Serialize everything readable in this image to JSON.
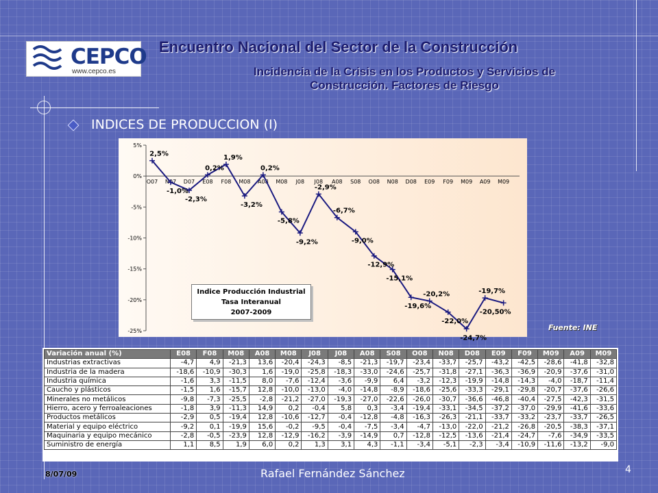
{
  "logo": {
    "name": "CEPCO",
    "url": "www.cepco.es",
    "icon": "cepco-logo-icon",
    "brand_color": "#1e3a8a"
  },
  "header": {
    "title": "Encuentro Nacional del Sector de la Construcción",
    "subtitle_line1": "Incidencia de la Crisis en los Productos y Servicios de",
    "subtitle_line2": "Construcción. Factores de Riesgo"
  },
  "section": {
    "heading": "INDICES DE PRODUCCION (I)",
    "bullet_icon": "diamond-bullet-icon"
  },
  "chart_data": {
    "type": "line",
    "title_lines": [
      "Indice Producción Industrial",
      "Tasa Interanual",
      "2007-2009"
    ],
    "categories": [
      "O07",
      "N07",
      "D07",
      "E08",
      "F08",
      "M08",
      "A08",
      "M08",
      "J08",
      "J08",
      "A08",
      "S08",
      "O08",
      "N08",
      "D08",
      "E09",
      "F09",
      "M09",
      "A09",
      "M09"
    ],
    "values": [
      2.5,
      -1.0,
      -2.3,
      0.2,
      1.9,
      -3.2,
      0.2,
      -5.8,
      -9.2,
      -2.9,
      -6.7,
      -9.0,
      -12.9,
      -15.1,
      -19.6,
      -20.2,
      -22.0,
      -24.7,
      -19.7,
      -20.5
    ],
    "labels": [
      "2,5%",
      "-1,0%",
      "-2,3%",
      "0,2%",
      "1,9%",
      "-3,2%",
      "0,2%",
      "-5,8%",
      "-9,2%",
      "-2,9%",
      "-6,7%",
      "-9,0%",
      "-12,9%",
      "-15,1%",
      "-19,6%",
      "-20,2%",
      "-22,0%",
      "-24,7%",
      "-19,7%",
      "-20,50%"
    ],
    "y_ticks": [
      "5%",
      "0%",
      "-5%",
      "-10%",
      "-15%",
      "-20%",
      "-25%"
    ],
    "ylim": [
      -25,
      5
    ],
    "line_color": "#1a1a80",
    "source": "Fuente: INE"
  },
  "table": {
    "headers": [
      "Variación anual (%)",
      "E08",
      "F08",
      "M08",
      "A08",
      "M08",
      "J08",
      "J08",
      "A08",
      "S08",
      "O08",
      "N08",
      "D08",
      "E09",
      "F09",
      "M09",
      "A09",
      "M09"
    ],
    "rows": [
      [
        "Industrias extractivas",
        "-4,7",
        "4,9",
        "-21,3",
        "13,6",
        "-20,4",
        "-24,3",
        "-8,5",
        "-21,3",
        "-19,7",
        "-23,4",
        "-33,7",
        "-25,7",
        "-43,2",
        "-42,5",
        "-28,6",
        "-41,8",
        "-32,8"
      ],
      [
        "Industria de la madera",
        "-18,6",
        "-10,9",
        "-30,3",
        "1,6",
        "-19,0",
        "-25,8",
        "-18,3",
        "-33,0",
        "-24,6",
        "-25,7",
        "-31,8",
        "-27,1",
        "-36,3",
        "-36,9",
        "-20,9",
        "-37,6",
        "-31,0"
      ],
      [
        "Industria química",
        "-1,6",
        "3,3",
        "-11,5",
        "8,0",
        "-7,6",
        "-12,4",
        "-3,6",
        "-9,9",
        "6,4",
        "-3,2",
        "-12,3",
        "-19,9",
        "-14,8",
        "-14,3",
        "-4,0",
        "-18,7",
        "-11,4"
      ],
      [
        "Caucho y plásticos",
        "-1,5",
        "1,6",
        "-15,7",
        "12,8",
        "-10,0",
        "-13,0",
        "-4,0",
        "-14,8",
        "-8,9",
        "-18,6",
        "-25,6",
        "-33,3",
        "-29,1",
        "-29,8",
        "-20,7",
        "-37,6",
        "-26,6"
      ],
      [
        "Minerales no metálicos",
        "-9,8",
        "-7,3",
        "-25,5",
        "-2,8",
        "-21,2",
        "-27,0",
        "-19,3",
        "-27,0",
        "-22,6",
        "-26,0",
        "-30,7",
        "-36,6",
        "-46,8",
        "-40,4",
        "-27,5",
        "-42,3",
        "-31,5"
      ],
      [
        "Hierro, acero y ferroaleaciones",
        "-1,8",
        "3,9",
        "-11,3",
        "14,9",
        "0,2",
        "-0,4",
        "5,8",
        "0,3",
        "-3,4",
        "-19,4",
        "-33,1",
        "-34,5",
        "-37,2",
        "-37,0",
        "-29,9",
        "-41,6",
        "-33,6"
      ],
      [
        "Productos metálicos",
        "-2,9",
        "0,5",
        "-19,4",
        "12,8",
        "-10,6",
        "-12,7",
        "-0,4",
        "-12,8",
        "-4,8",
        "-16,3",
        "-26,3",
        "-21,1",
        "-33,7",
        "-33,2",
        "-23,7",
        "-33,7",
        "-26,5"
      ],
      [
        "Material y equipo eléctrico",
        "-9,2",
        "0,1",
        "-19,9",
        "15,6",
        "-0,2",
        "-9,5",
        "-0,4",
        "-7,5",
        "-3,4",
        "-4,7",
        "-13,0",
        "-22,0",
        "-21,2",
        "-26,8",
        "-20,5",
        "-38,3",
        "-37,1"
      ],
      [
        "Maquinaria y equipo mecánico",
        "-2,8",
        "-0,5",
        "-23,9",
        "12,8",
        "-12,9",
        "-16,2",
        "-3,9",
        "-14,9",
        "0,7",
        "-12,8",
        "-12,5",
        "-13,6",
        "-21,4",
        "-24,7",
        "-7,6",
        "-34,9",
        "-33,5"
      ],
      [
        "Suministro de energía",
        "1,1",
        "8,5",
        "1,9",
        "6,0",
        "0,2",
        "1,3",
        "3,1",
        "4,3",
        "-1,1",
        "-3,4",
        "-5,1",
        "-2,3",
        "-3,4",
        "-10,9",
        "-11,6",
        "-13,2",
        "-9,0"
      ]
    ]
  },
  "footer": {
    "date": "8/07/09",
    "author": "Rafael Fernández Sánchez",
    "page_number": "4"
  }
}
